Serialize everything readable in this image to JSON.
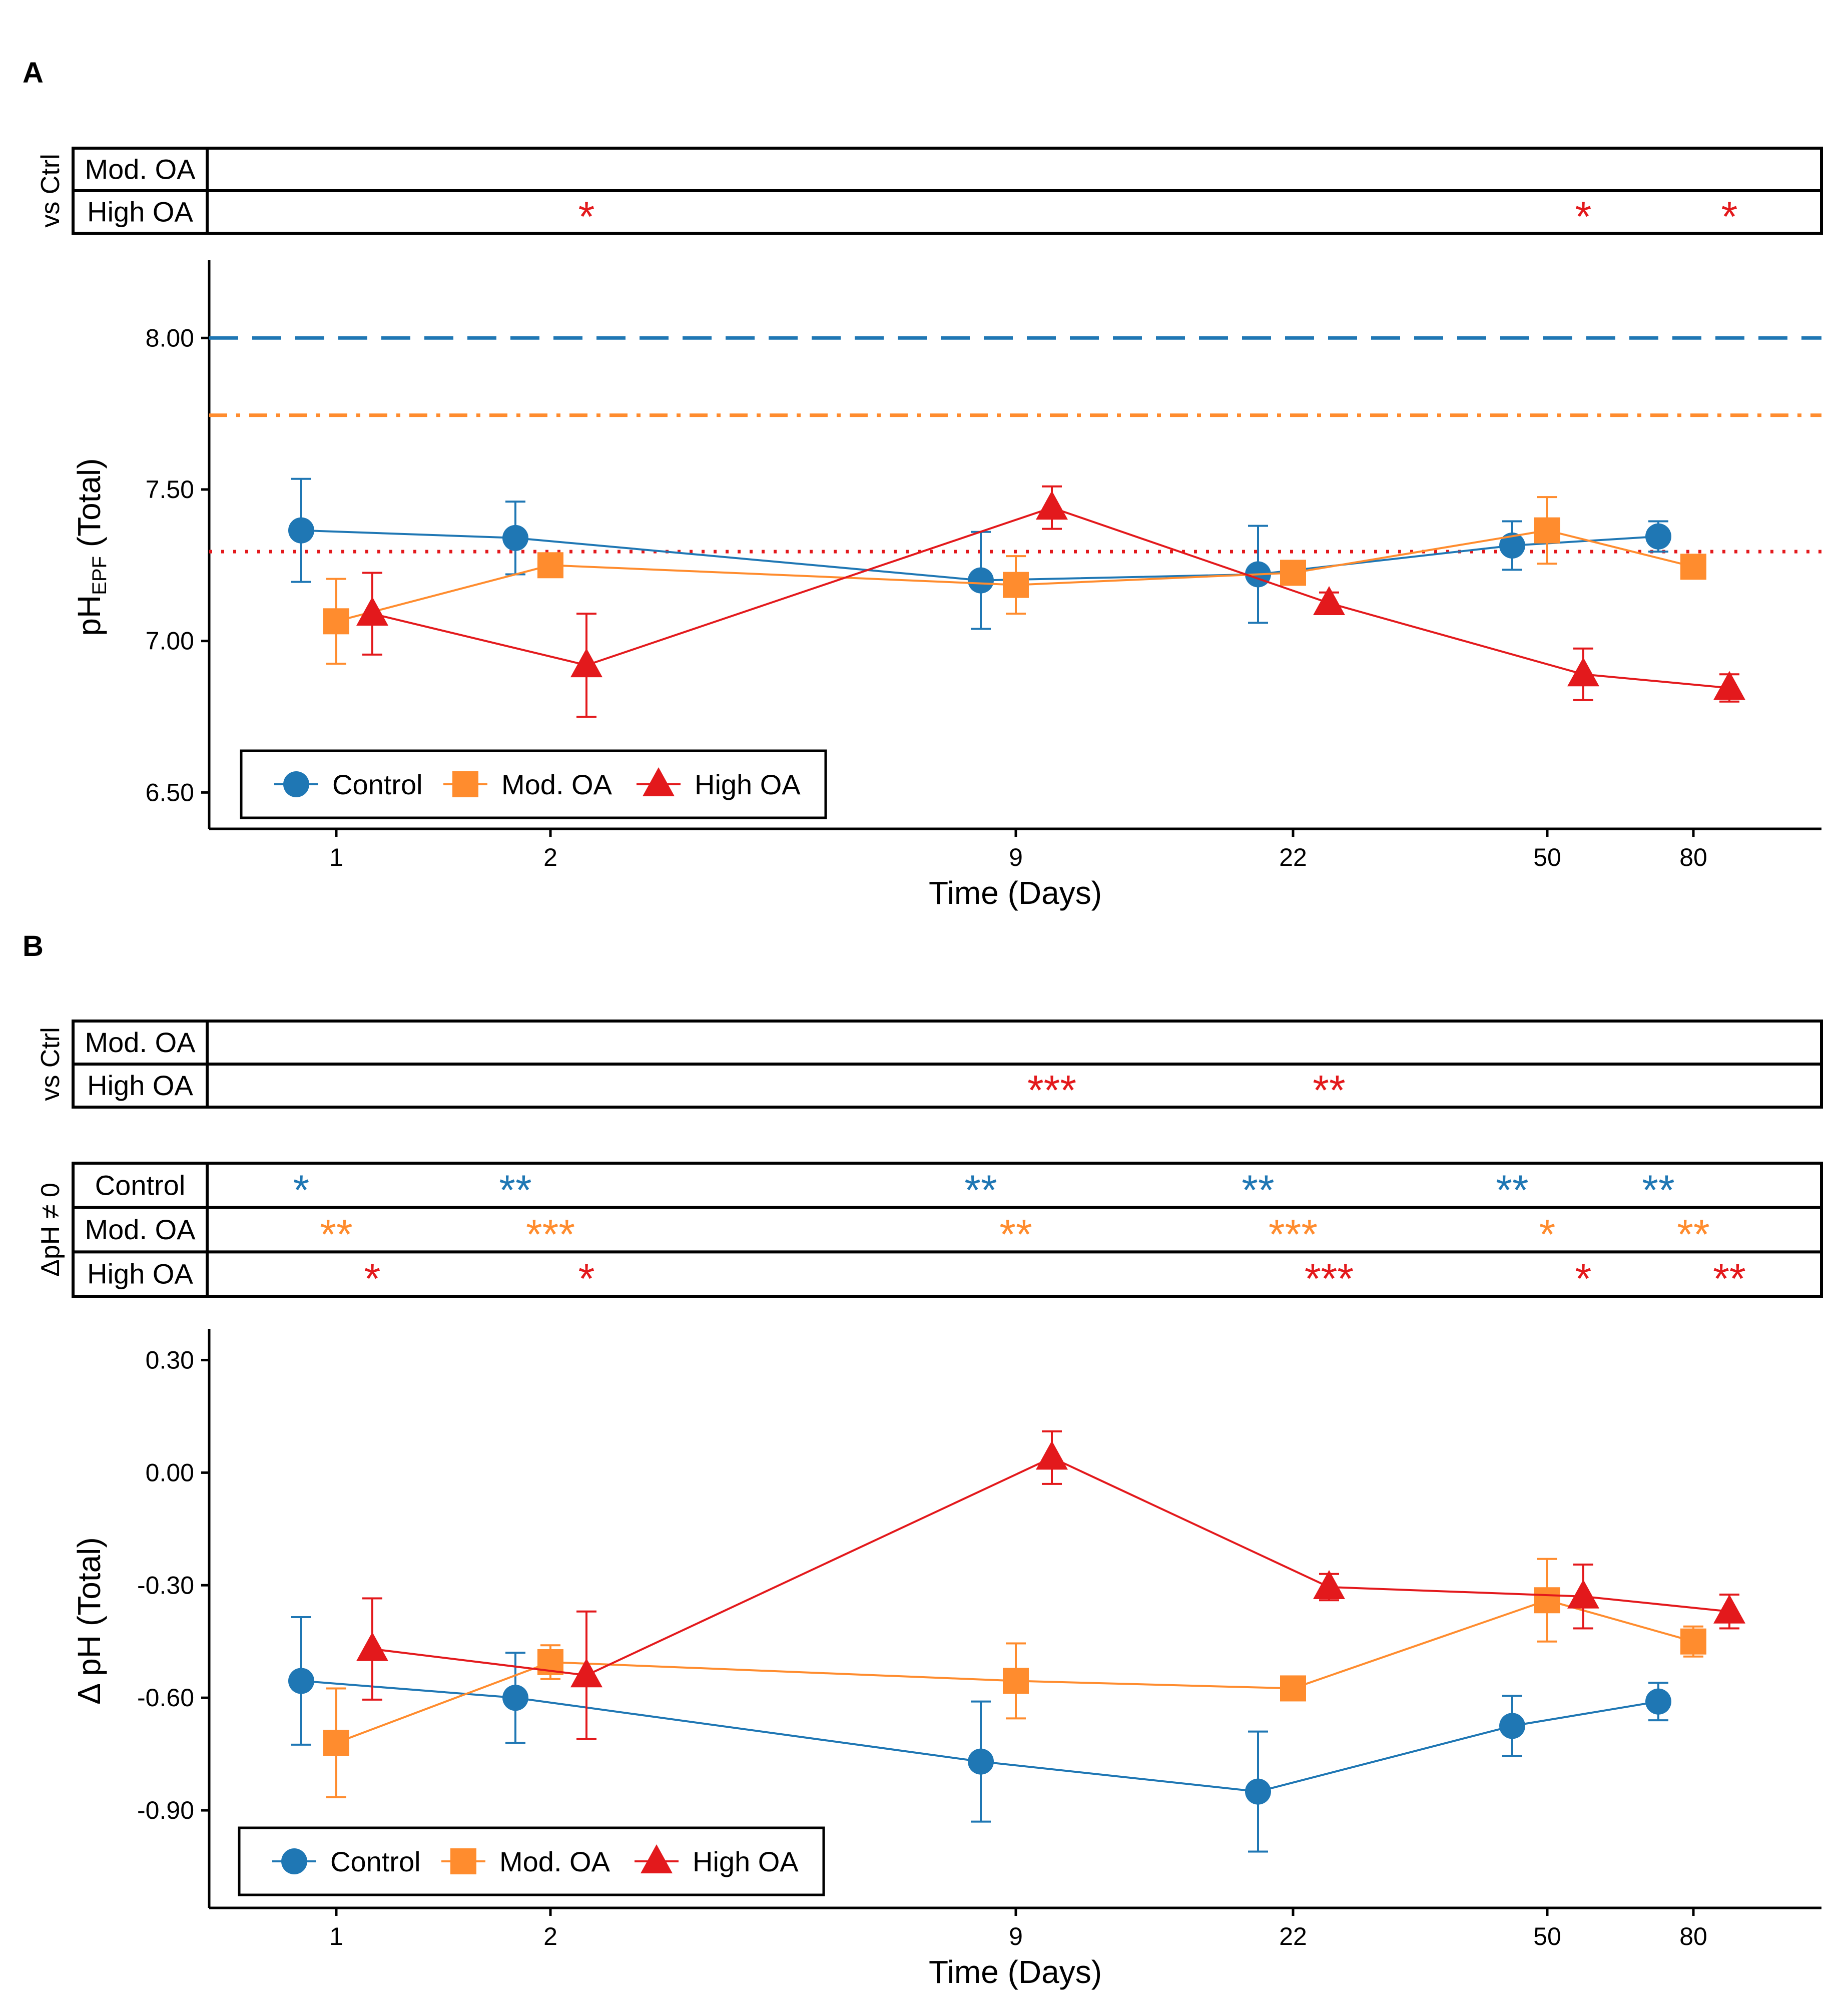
{
  "figure": {
    "panel_a_label": "A",
    "panel_b_label": "B"
  },
  "colors": {
    "control": "#1f77b4",
    "mod_oa": "#ff8c2e",
    "high_oa": "#e3191c"
  },
  "chart_data": [
    {
      "panel": "A",
      "type": "line",
      "xlabel": "Time (Days)",
      "ylabel_main": "pH",
      "ylabel_sub": "EPF",
      "ylabel_tail": "(Total)",
      "x_ticks": [
        "1",
        "2",
        "9",
        "22",
        "50",
        "80"
      ],
      "y_ticks": [
        "8.00",
        "7.50",
        "7.00",
        "6.50"
      ],
      "ylim": [
        6.38,
        8.24
      ],
      "reference_lines": [
        {
          "series": "Control",
          "y": 8.0,
          "style": "dashed"
        },
        {
          "series": "Mod. OA",
          "y": 7.745,
          "style": "dashdot"
        },
        {
          "series": "High OA",
          "y": 7.295,
          "style": "dotted"
        }
      ],
      "series": [
        {
          "name": "Control",
          "key": "control",
          "marker": "circle",
          "y": [
            7.365,
            7.34,
            7.2,
            7.22,
            7.315,
            7.345
          ],
          "err": [
            0.17,
            0.12,
            0.16,
            0.16,
            0.08,
            0.05
          ]
        },
        {
          "name": "Mod. OA",
          "key": "mod_oa",
          "marker": "square",
          "y": [
            7.065,
            7.25,
            7.185,
            7.225,
            7.365,
            7.245
          ],
          "err": [
            0.14,
            0.035,
            0.095,
            0.02,
            0.11,
            0.035
          ]
        },
        {
          "name": "High OA",
          "key": "high_oa",
          "marker": "triangle",
          "y": [
            7.09,
            6.92,
            7.44,
            7.125,
            6.89,
            6.845
          ],
          "err": [
            0.135,
            0.17,
            0.07,
            0.035,
            0.085,
            0.045
          ]
        }
      ],
      "legend": [
        "Control",
        "Mod. OA",
        "High OA"
      ],
      "legend_position": "bottom-left",
      "significance_title": "vs Ctrl",
      "significance_rows": [
        {
          "label": "Mod. OA",
          "marks": [
            "",
            "",
            "",
            "",
            "",
            ""
          ]
        },
        {
          "label": "High OA",
          "marks": [
            "",
            "*",
            "",
            "",
            "*",
            "*"
          ]
        }
      ]
    },
    {
      "panel": "B",
      "type": "line",
      "xlabel": "Time (Days)",
      "ylabel": "Δ pH (Total)",
      "x_ticks": [
        "1",
        "2",
        "9",
        "22",
        "50",
        "80"
      ],
      "y_ticks": [
        "0.30",
        "0.00",
        "-0.30",
        "-0.60",
        "-0.90"
      ],
      "ylim": [
        -1.16,
        0.37
      ],
      "series": [
        {
          "name": "Control",
          "key": "control",
          "marker": "circle",
          "y": [
            -0.555,
            -0.6,
            -0.77,
            -0.85,
            -0.675,
            -0.61
          ],
          "err": [
            0.17,
            0.12,
            0.16,
            0.16,
            0.08,
            0.05
          ]
        },
        {
          "name": "Mod. OA",
          "key": "mod_oa",
          "marker": "square",
          "y": [
            -0.72,
            -0.505,
            -0.555,
            -0.575,
            -0.34,
            -0.45
          ],
          "err": [
            0.145,
            0.045,
            0.1,
            0.02,
            0.11,
            0.04
          ]
        },
        {
          "name": "High OA",
          "key": "high_oa",
          "marker": "triangle",
          "y": [
            -0.47,
            -0.54,
            0.04,
            -0.305,
            -0.33,
            -0.37
          ],
          "err": [
            0.135,
            0.17,
            0.07,
            0.035,
            0.085,
            0.045
          ]
        }
      ],
      "legend": [
        "Control",
        "Mod. OA",
        "High OA"
      ],
      "legend_position": "bottom-left",
      "significance_title": "vs Ctrl",
      "significance_rows": [
        {
          "label": "Mod. OA",
          "marks": [
            "",
            "",
            "",
            "",
            "",
            ""
          ]
        },
        {
          "label": "High OA",
          "marks": [
            "",
            "",
            "***",
            "**",
            "",
            ""
          ]
        }
      ],
      "zero_test_title": "ΔpH ≠ 0",
      "zero_test_rows": [
        {
          "label": "Control",
          "key": "control",
          "marks": [
            "*",
            "**",
            "**",
            "**",
            "**",
            "**"
          ]
        },
        {
          "label": "Mod. OA",
          "key": "mod_oa",
          "marks": [
            "**",
            "***",
            "**",
            "***",
            "*",
            "**"
          ]
        },
        {
          "label": "High OA",
          "key": "high_oa",
          "marks": [
            "*",
            "*",
            "",
            "***",
            "*",
            "**"
          ]
        }
      ]
    }
  ]
}
